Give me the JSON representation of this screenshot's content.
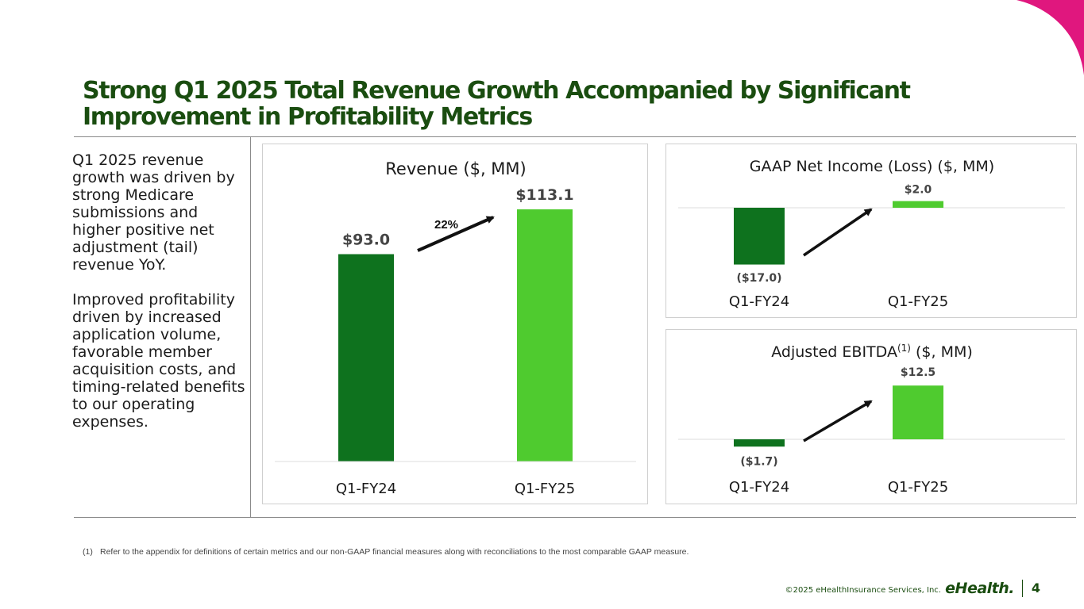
{
  "slide": {
    "title": "Strong Q1 2025 Total Revenue Growth Accompanied by Significant Improvement in Profitability Metrics",
    "left_text": [
      "Q1 2025 revenue growth was driven by strong Medicare submissions and higher positive net adjustment (tail) revenue YoY.",
      "Improved profitability driven by increased application volume, favorable member acquisition costs, and timing-related benefits to our operating expenses."
    ],
    "footnote_num": "(1)",
    "footnote": "Refer to the appendix for definitions of certain metrics and our non-GAAP financial measures along with reconciliations to the most comparable GAAP measure.",
    "copyright": "©2025 eHealthInsurance Services, Inc.",
    "brand": "eHealth.",
    "page_number": "4"
  },
  "colors": {
    "title": "#1a4d10",
    "bar_prior": "#0e721e",
    "bar_current": "#4fcb2f",
    "accent": "#e0177e"
  },
  "chart_data": [
    {
      "id": "revenue",
      "type": "bar",
      "title": "Revenue ($, MM)",
      "categories": [
        "Q1-FY24",
        "Q1-FY25"
      ],
      "values": [
        93.0,
        113.1
      ],
      "data_labels": [
        "$93.0",
        "$113.1"
      ],
      "ylim": [
        0,
        113.1
      ],
      "growth_label": "22%",
      "xlabel": "",
      "ylabel": "",
      "legend": "none",
      "grid": false
    },
    {
      "id": "gaap",
      "type": "bar",
      "title": "GAAP Net Income (Loss) ($, MM)",
      "categories": [
        "Q1-FY24",
        "Q1-FY25"
      ],
      "values": [
        -17.0,
        2.0
      ],
      "data_labels": [
        "($17.0)",
        "$2.0"
      ],
      "ylim": [
        -17.0,
        2.0
      ],
      "xlabel": "",
      "ylabel": "",
      "legend": "none",
      "grid": false
    },
    {
      "id": "ebitda",
      "type": "bar",
      "title_main": "Adjusted EBITDA",
      "title_sup": "(1)",
      "title_rest": " ($, MM)",
      "categories": [
        "Q1-FY24",
        "Q1-FY25"
      ],
      "values": [
        -1.7,
        12.5
      ],
      "data_labels": [
        "($1.7)",
        "$12.5"
      ],
      "ylim": [
        -1.7,
        12.5
      ],
      "xlabel": "",
      "ylabel": "",
      "legend": "none",
      "grid": false
    }
  ]
}
